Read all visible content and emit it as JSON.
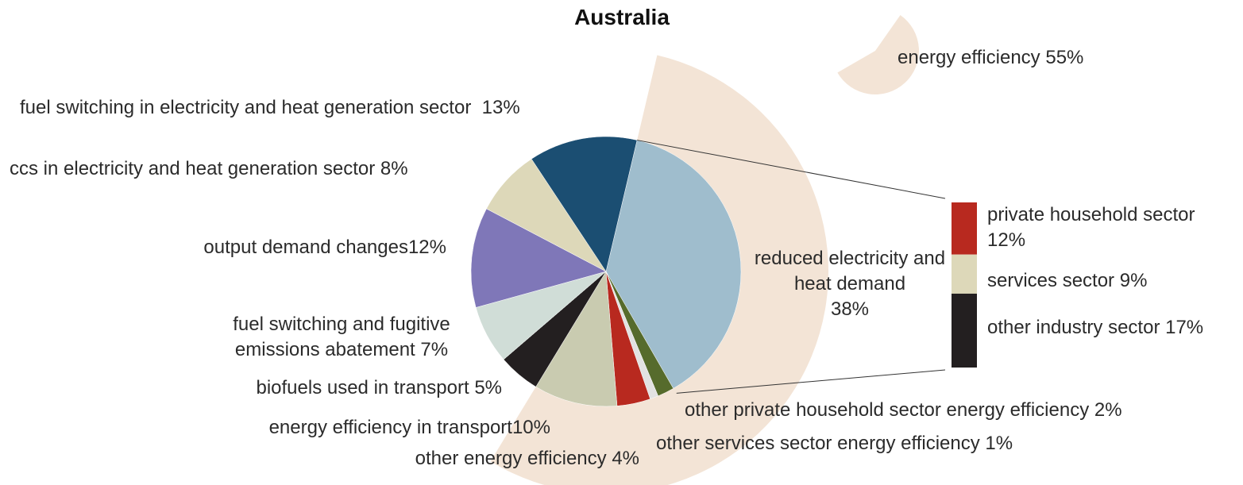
{
  "chart_data": {
    "type": "pie",
    "title": "Australia",
    "categories": [
      "reduced electricity and heat demand",
      "other private household sector energy efficiency",
      "other services sector energy efficiency",
      "other energy efficiency",
      "energy efficiency in transport",
      "biofuels used in transport",
      "fuel switching and fugitive emissions abatement",
      "output demand changes",
      "ccs in electricity and heat generation sector",
      "fuel switching in electricity and heat generation sector"
    ],
    "values": [
      38,
      2,
      1,
      4,
      10,
      5,
      7,
      12,
      8,
      13
    ],
    "value_labels": [
      "38%",
      "2%",
      "1%",
      "4%",
      "10%",
      "5%",
      "7%",
      "12%",
      "8%",
      "13%"
    ],
    "colors": [
      "#9fbdcd",
      "#566b2c",
      "#e2e2e2",
      "#b8291f",
      "#c9cbb0",
      "#231f20",
      "#d0ddd7",
      "#7f77b8",
      "#ddd8b9",
      "#1b4e72"
    ],
    "group": {
      "name": "energy efficiency",
      "value": 55,
      "value_label": "55%",
      "color": "#f3e4d6"
    },
    "breakdown": {
      "categories": [
        "private household sector",
        "services sector",
        "other industry sector"
      ],
      "values": [
        12,
        9,
        17
      ],
      "value_labels": [
        "12%",
        "9%",
        "17%"
      ],
      "colors": [
        "#b8291f",
        "#ddd8b9",
        "#231f20"
      ]
    }
  }
}
